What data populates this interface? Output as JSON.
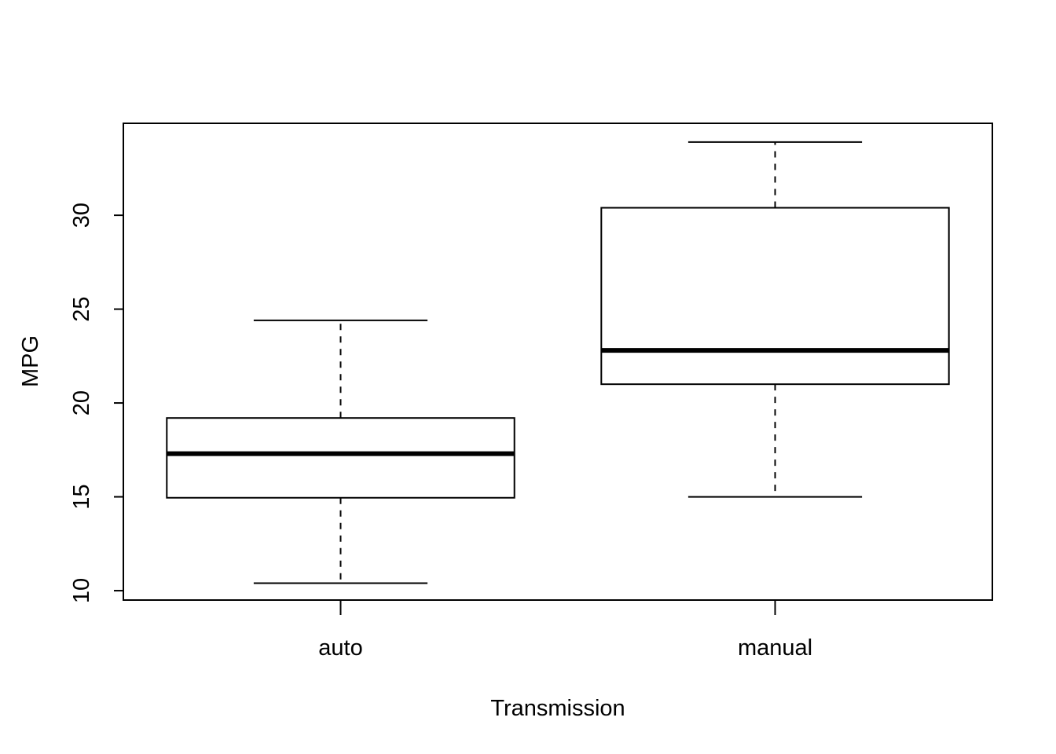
{
  "chart_data": {
    "type": "boxplot",
    "title": "",
    "xlabel": "Transmission",
    "ylabel": "MPG",
    "categories": [
      "auto",
      "manual"
    ],
    "boxes": [
      {
        "category": "auto",
        "min": 10.4,
        "q1": 14.95,
        "median": 17.3,
        "q3": 19.2,
        "max": 24.4
      },
      {
        "category": "manual",
        "min": 15.0,
        "q1": 21.0,
        "median": 22.8,
        "q3": 30.4,
        "max": 33.9
      }
    ],
    "ylim": [
      9.5,
      34.9
    ],
    "yticks": [
      10,
      15,
      20,
      25,
      30
    ],
    "grid": false,
    "colors": {
      "box_fill": "#ffffff",
      "stroke": "#000000"
    }
  }
}
